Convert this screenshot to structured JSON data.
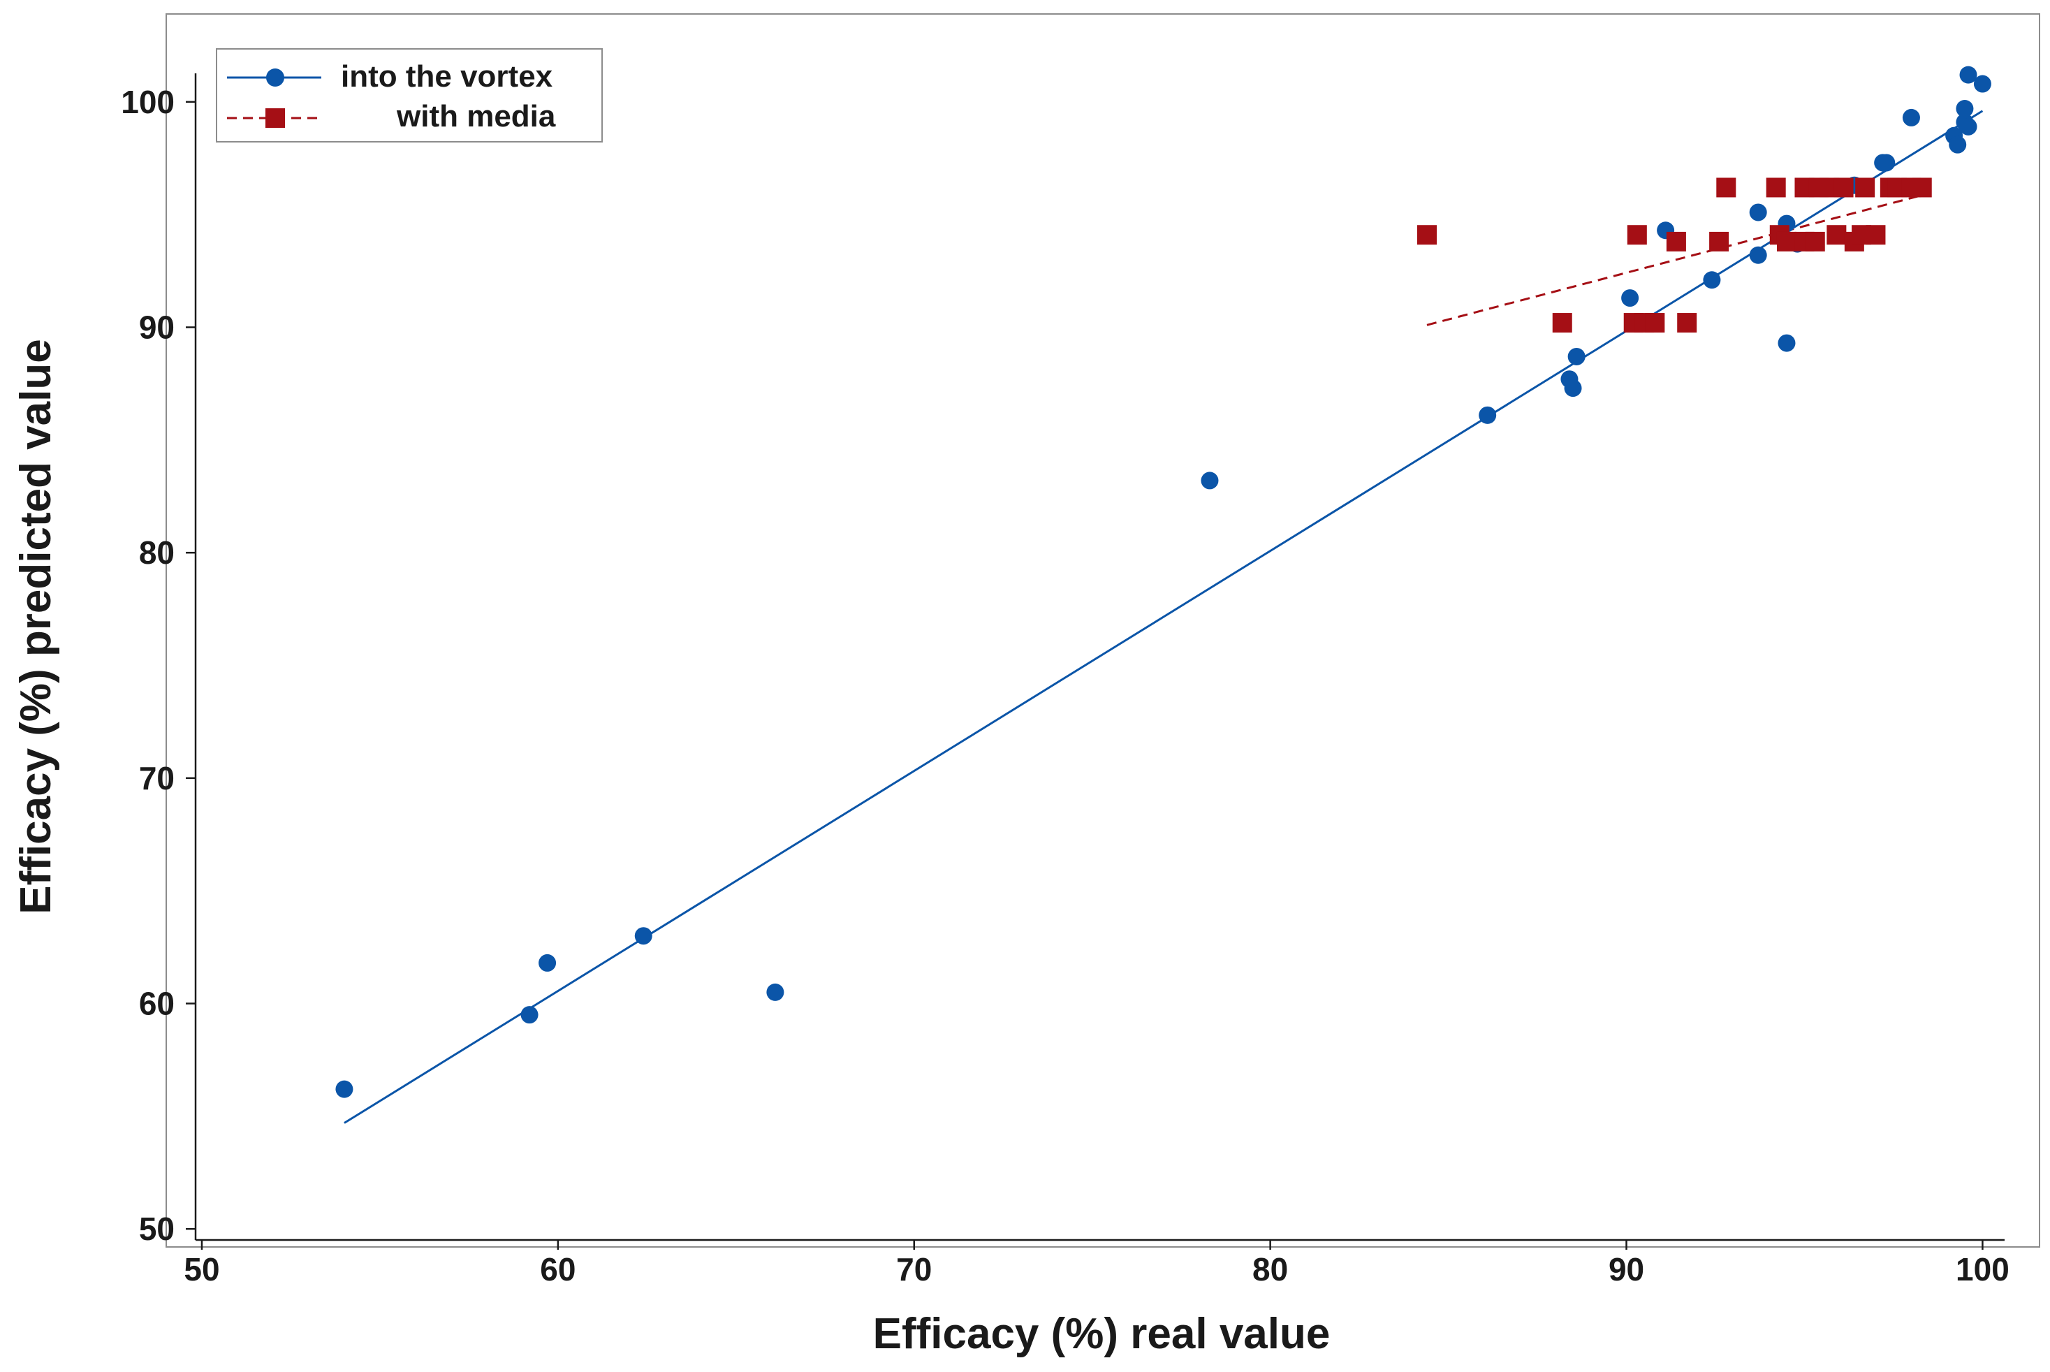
{
  "chart_data": {
    "type": "scatter",
    "xlabel": "Efficacy (%) real value",
    "ylabel": "Efficacy (%) predicted value",
    "xlim": [
      49,
      101.6
    ],
    "ylim": [
      49.2,
      103.9
    ],
    "xticks": [
      50,
      60,
      70,
      80,
      90,
      100
    ],
    "yticks": [
      50,
      60,
      70,
      80,
      90,
      100
    ],
    "grid": false,
    "legend_position": "top-left",
    "series": [
      {
        "name": "into the vortex",
        "marker": "circle",
        "line_style": "solid",
        "color": "#0b55a8",
        "points": [
          [
            54.0,
            56.2
          ],
          [
            59.2,
            59.5
          ],
          [
            59.7,
            61.8
          ],
          [
            62.4,
            63.0
          ],
          [
            66.1,
            60.5
          ],
          [
            78.3,
            83.2
          ],
          [
            86.1,
            86.1
          ],
          [
            88.4,
            87.7
          ],
          [
            88.5,
            87.3
          ],
          [
            88.6,
            88.7
          ],
          [
            90.1,
            91.3
          ],
          [
            91.1,
            94.3
          ],
          [
            92.4,
            92.1
          ],
          [
            93.7,
            95.1
          ],
          [
            93.7,
            93.2
          ],
          [
            94.5,
            94.6
          ],
          [
            94.5,
            89.3
          ],
          [
            94.8,
            93.7
          ],
          [
            96.4,
            96.3
          ],
          [
            97.2,
            97.3
          ],
          [
            97.3,
            97.3
          ],
          [
            98.0,
            99.3
          ],
          [
            99.2,
            98.5
          ],
          [
            99.3,
            98.1
          ],
          [
            99.5,
            99.1
          ],
          [
            99.5,
            99.7
          ],
          [
            99.6,
            101.2
          ],
          [
            99.6,
            98.9
          ],
          [
            100.0,
            100.8
          ]
        ],
        "fit_line": {
          "x": [
            54.0,
            100.0
          ],
          "y": [
            54.7,
            99.6
          ]
        }
      },
      {
        "name": "with media",
        "marker": "square",
        "line_style": "dashed",
        "color": "#a50f15",
        "points": [
          [
            84.4,
            94.1
          ],
          [
            88.2,
            90.2
          ],
          [
            90.2,
            90.2
          ],
          [
            90.3,
            94.1
          ],
          [
            90.5,
            90.2
          ],
          [
            90.8,
            90.2
          ],
          [
            91.4,
            93.8
          ],
          [
            91.7,
            90.2
          ],
          [
            92.6,
            93.8
          ],
          [
            92.8,
            96.2
          ],
          [
            94.2,
            96.2
          ],
          [
            94.3,
            94.1
          ],
          [
            94.5,
            93.8
          ],
          [
            95.0,
            93.8
          ],
          [
            95.0,
            96.2
          ],
          [
            95.3,
            93.8
          ],
          [
            95.4,
            96.2
          ],
          [
            95.7,
            96.2
          ],
          [
            95.9,
            94.1
          ],
          [
            96.1,
            96.2
          ],
          [
            96.4,
            93.8
          ],
          [
            96.6,
            94.1
          ],
          [
            96.7,
            96.2
          ],
          [
            97.0,
            94.1
          ],
          [
            97.4,
            96.2
          ],
          [
            97.6,
            96.2
          ],
          [
            98.0,
            96.2
          ],
          [
            98.3,
            96.2
          ]
        ],
        "fit_line": {
          "x": [
            84.4,
            98.4
          ],
          "y": [
            90.1,
            95.9
          ]
        }
      }
    ]
  }
}
